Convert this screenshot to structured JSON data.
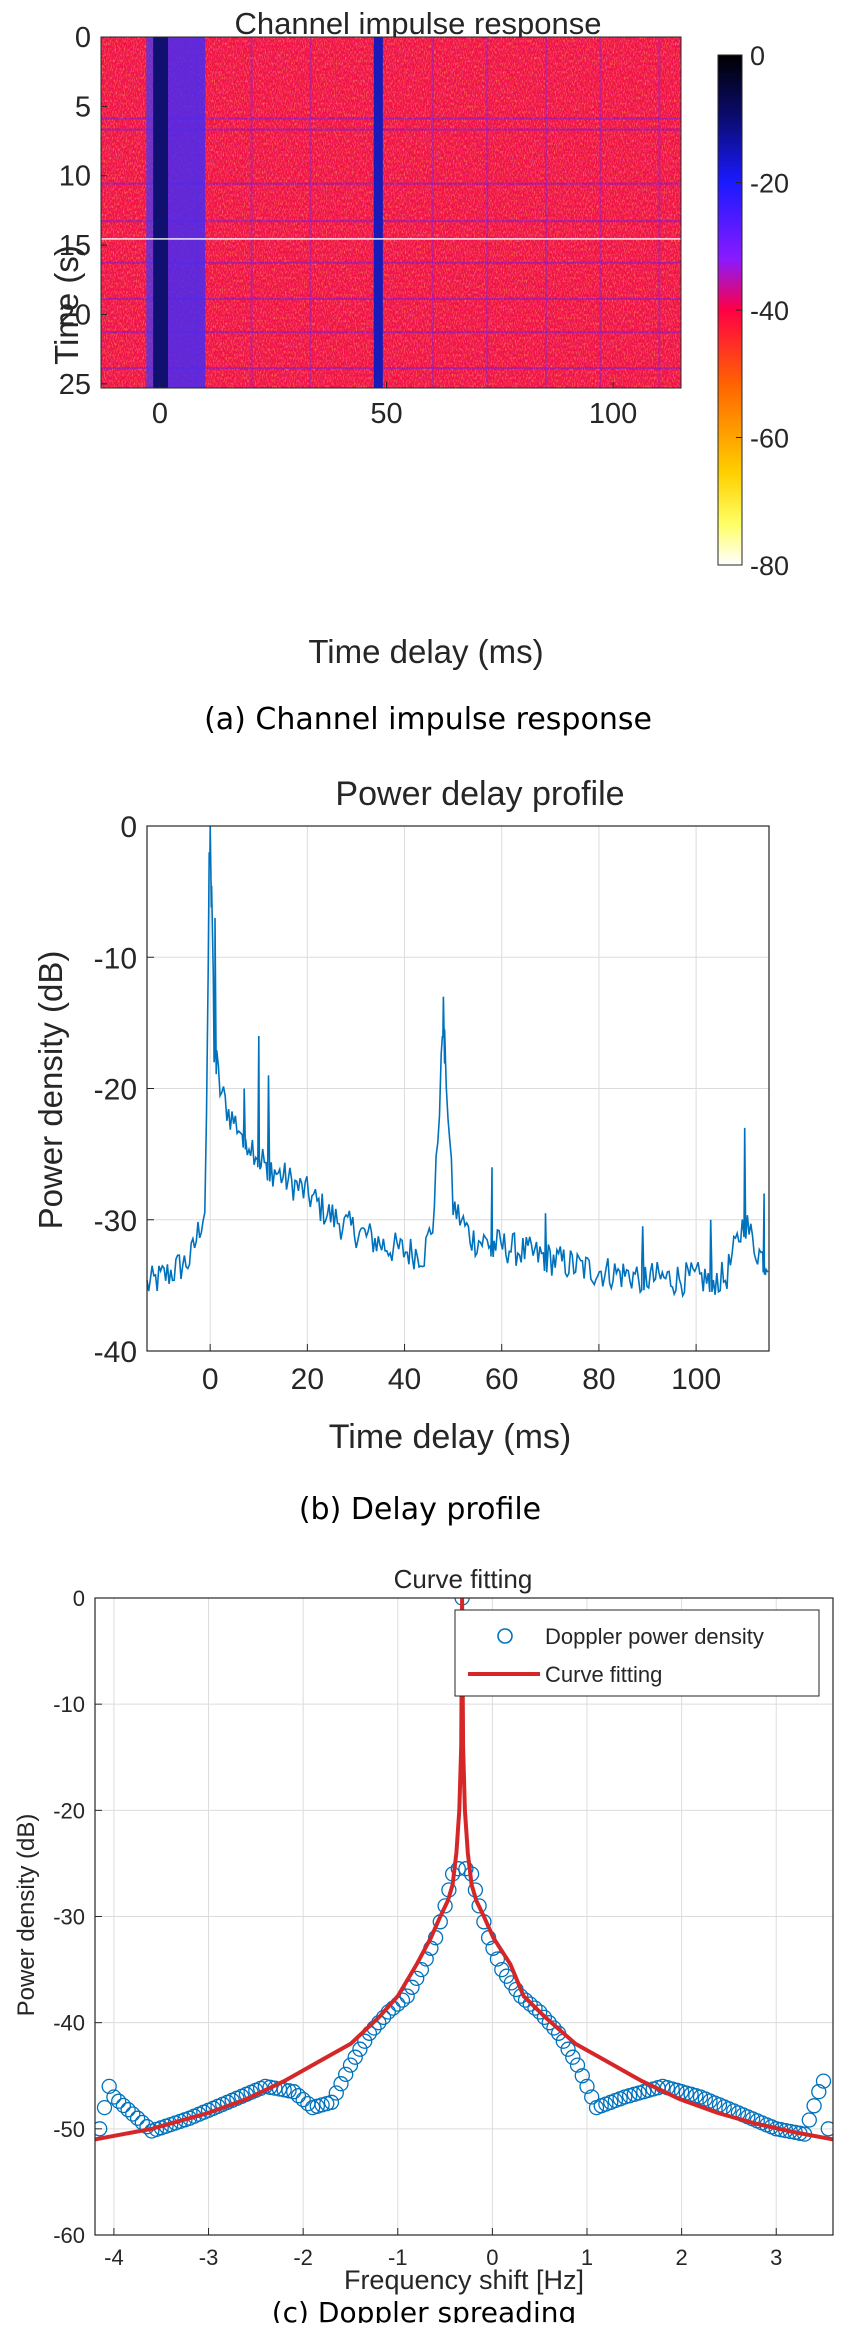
{
  "captions": {
    "a": "(a) Channel impulse response",
    "b": "(b) Delay profile",
    "c": "(c) Doppler spreading"
  },
  "chart_data": [
    {
      "type": "heatmap",
      "title": "Channel impulse response",
      "xlabel": "Time delay (ms)",
      "ylabel": "Time (s)",
      "xlim": [
        -13,
        115
      ],
      "ylim": [
        0,
        25.3
      ],
      "y_reversed": true,
      "xticks": [
        0,
        50,
        100
      ],
      "yticks": [
        0,
        5,
        10,
        15,
        20,
        25
      ],
      "colorbar": {
        "range": [
          -80,
          0
        ],
        "ticks": [
          0,
          -20,
          -40,
          -60,
          -80
        ],
        "colormap": "hot-reversed (black-blue-magenta-red-orange-yellow-white)"
      },
      "strong_delay_lines_ms": [
        0,
        48
      ],
      "background_level_db": -40,
      "grid": false
    },
    {
      "type": "line",
      "title": "Power delay profile",
      "xlabel": "Time delay (ms)",
      "ylabel": "Power density (dB)",
      "xlim": [
        -13,
        115
      ],
      "ylim": [
        -40,
        0
      ],
      "xticks": [
        0,
        20,
        40,
        60,
        80,
        100
      ],
      "yticks": [
        0,
        -10,
        -20,
        -30,
        -40
      ],
      "grid": true,
      "series": [
        {
          "color": "#0072bd",
          "x": [
            -13,
            -8,
            -4,
            -1,
            0,
            0.5,
            1,
            2,
            4,
            6,
            8,
            10,
            12,
            16,
            20,
            24,
            28,
            32,
            36,
            40,
            44,
            46,
            48,
            50,
            54,
            58,
            62,
            66,
            70,
            74,
            78,
            82,
            86,
            90,
            94,
            98,
            102,
            106,
            110,
            112,
            115
          ],
          "y": [
            -35,
            -34,
            -33,
            -29,
            -1,
            -8,
            -17,
            -20,
            -22,
            -23,
            -24,
            -25,
            -26,
            -27,
            -28,
            -29.5,
            -30.5,
            -31.2,
            -32,
            -32.4,
            -32.6,
            -30,
            -15,
            -29,
            -31.5,
            -31.8,
            -32.2,
            -32.6,
            -33,
            -33.4,
            -33.8,
            -34,
            -34.2,
            -34.4,
            -34.5,
            -34.5,
            -34.5,
            -34.5,
            -30,
            -32,
            -33.5
          ]
        }
      ],
      "spikes": [
        [
          0,
          0
        ],
        [
          1,
          -7
        ],
        [
          10,
          -16
        ],
        [
          7,
          -20
        ],
        [
          12,
          -19
        ],
        [
          48,
          -13
        ],
        [
          58,
          -26
        ],
        [
          69,
          -29.5
        ],
        [
          89,
          -30.5
        ],
        [
          103,
          -30
        ],
        [
          110,
          -23
        ],
        [
          114,
          -28
        ]
      ]
    },
    {
      "type": "scatter",
      "title": "Curve fitting",
      "xlabel": "Frequency shift [Hz]",
      "ylabel": "Power density (dB)",
      "xlim": [
        -4.2,
        3.6
      ],
      "ylim": [
        -60,
        0
      ],
      "xticks": [
        -4,
        -3,
        -2,
        -1,
        0,
        1,
        2,
        3
      ],
      "yticks": [
        0,
        -10,
        -20,
        -30,
        -40,
        -50,
        -60
      ],
      "grid": true,
      "legend": {
        "placement": "top-right",
        "entries": [
          "Doppler power density",
          "Curve fitting"
        ]
      },
      "center_hz": -0.32,
      "series": [
        {
          "name": "Doppler power density",
          "marker": "circle",
          "color": "#0072bd",
          "x": [
            -4.15,
            -4.05,
            -4.0,
            -3.6,
            -3.2,
            -2.8,
            -2.4,
            -2.1,
            -1.9,
            -1.7,
            -1.5,
            -1.3,
            -1.1,
            -0.9,
            -0.75,
            -0.6,
            -0.5,
            -0.42,
            -0.36,
            -0.32,
            -0.28,
            -0.22,
            -0.14,
            -0.04,
            0.1,
            0.3,
            0.5,
            0.7,
            0.9,
            1.1,
            1.4,
            1.8,
            2.2,
            2.6,
            3.0,
            3.3,
            3.45,
            3.5,
            3.55
          ],
          "y": [
            -50,
            -46,
            -47,
            -50.2,
            -49,
            -47.5,
            -46,
            -46.5,
            -48,
            -47.5,
            -44,
            -41,
            -39,
            -37.5,
            -35,
            -32,
            -29,
            -26,
            -25.5,
            0,
            -25.5,
            -26,
            -29,
            -32,
            -35,
            -37.5,
            -39,
            -41,
            -44,
            -48,
            -47,
            -46,
            -47,
            -48.5,
            -50,
            -50.5,
            -46.5,
            -45.5,
            -50
          ]
        },
        {
          "name": "Curve fitting",
          "color": "#d62728",
          "x": [
            -4.2,
            -3.6,
            -3.0,
            -2.6,
            -2.2,
            -1.8,
            -1.5,
            -1.2,
            -1.0,
            -0.8,
            -0.65,
            -0.55,
            -0.47,
            -0.42,
            -0.38,
            -0.35,
            -0.33,
            -0.32,
            -0.31,
            -0.29,
            -0.26,
            -0.22,
            -0.17,
            -0.09,
            0.01,
            0.19,
            0.33,
            0.56,
            0.88,
            1.18,
            1.58,
            1.98,
            2.38,
            2.78,
            3.18,
            3.6
          ],
          "y": [
            -51,
            -50,
            -48.5,
            -47.2,
            -45.5,
            -43.5,
            -42,
            -39.5,
            -37.5,
            -34.5,
            -32,
            -30,
            -28.5,
            -27,
            -24,
            -20,
            -14,
            0,
            -14,
            -20,
            -24,
            -27,
            -28.5,
            -30,
            -32,
            -34.5,
            -37.5,
            -39.5,
            -42,
            -43.5,
            -45.5,
            -47.2,
            -48.5,
            -49.5,
            -50.3,
            -51
          ]
        }
      ]
    }
  ]
}
